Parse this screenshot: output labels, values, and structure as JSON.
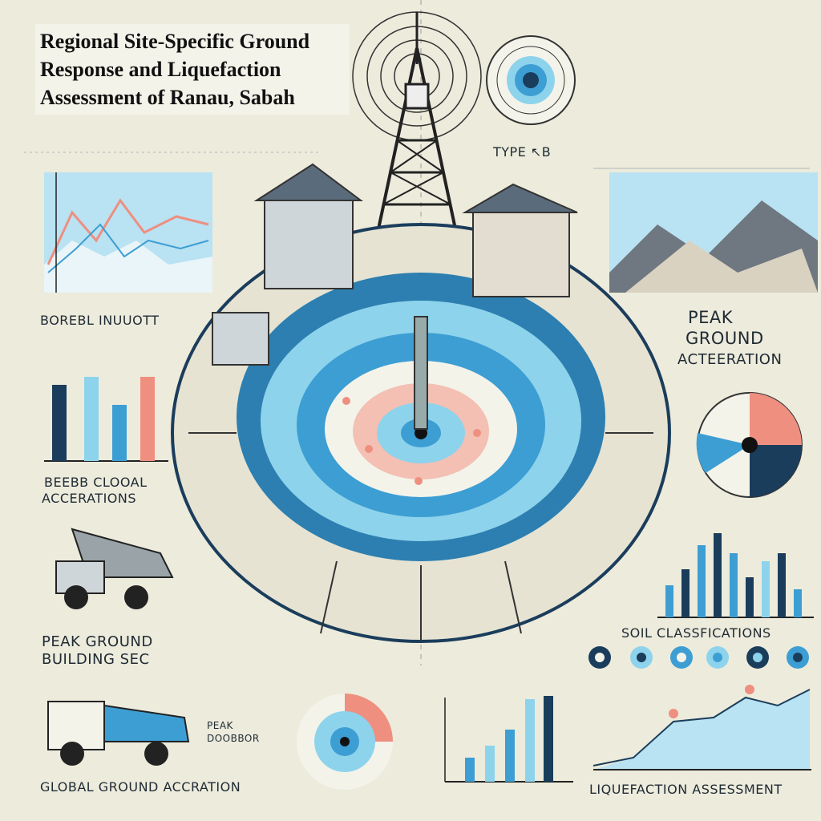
{
  "title": "Regional Site-Specific Ground Response and Liquefaction Assessment of Ranau, Sabah",
  "labels": {
    "type_b": "TYPE ↖B",
    "borebl": "BOREBL INUUOTT",
    "peak_ground_line1": "PEAK",
    "peak_ground_line2": "GROUND",
    "peak_ground_line3": "ACTEERATION",
    "beebb_line1": "BEEBB CLOOAL",
    "beebb_line2": "ACCERATIONS",
    "soil_classifications": "SOIL CLASSFICATIONS",
    "peak_building_line1": "PEAK GROUND",
    "peak_building_line2": "BUILDING SEC",
    "peak_small_line1": "PEAK",
    "peak_small_line2": "DOOBBOR",
    "global_ground": "GLOBAL GROUND ACCRATION",
    "liquefaction": "LIQUEFACTION ASSESSMENT"
  },
  "colors": {
    "background": "#ecebdc",
    "light_blue": "#8ed3ec",
    "mid_blue": "#3d9ed3",
    "dark_navy": "#1b3d5c",
    "salmon": "#ee8f80",
    "ink": "#1f2a33"
  },
  "icons": {
    "tower": "radio-tower-icon",
    "truck": "dump-truck-icon",
    "target": "target-icon",
    "mountains": "mountains-icon",
    "building": "building-icon"
  }
}
